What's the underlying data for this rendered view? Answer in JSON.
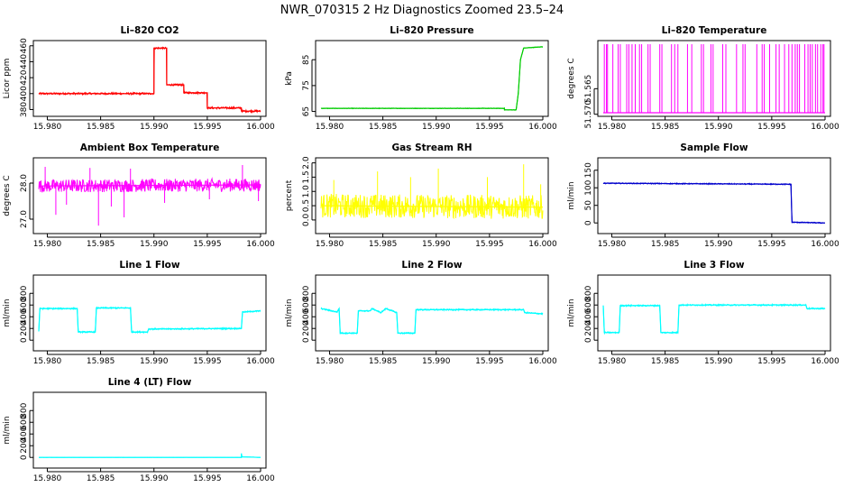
{
  "figure_title": "NWR_070315  2 Hz Diagnostics Zoomed 23.5–24",
  "chart_data": [
    {
      "type": "line",
      "title": "Li–820 CO2",
      "xlabel": "",
      "ylabel": "Licor ppm",
      "color": "#ff0000",
      "xlim": [
        15.9792,
        16.0
      ],
      "xticks": [
        15.98,
        15.985,
        15.99,
        15.995,
        16.0
      ],
      "xtick_labels": [
        "15.980",
        "15.985",
        "15.990",
        "15.995",
        "16.000"
      ],
      "ylim": [
        376,
        462
      ],
      "yticks": [
        380,
        400,
        420,
        440,
        460
      ],
      "ytick_labels": [
        "380",
        "400",
        "420",
        "440",
        "460"
      ],
      "noise": 1.2,
      "segments": [
        [
          15.9792,
          400
        ],
        [
          15.99,
          400
        ],
        [
          15.99,
          457
        ],
        [
          15.9912,
          457
        ],
        [
          15.9912,
          411
        ],
        [
          15.9928,
          411
        ],
        [
          15.9928,
          401
        ],
        [
          15.995,
          401
        ],
        [
          15.995,
          382
        ],
        [
          15.9982,
          382
        ],
        [
          15.9982,
          378
        ],
        [
          16.0,
          378
        ]
      ]
    },
    {
      "type": "line",
      "title": "Li–820 Pressure",
      "xlabel": "",
      "ylabel": "kPa",
      "color": "#00cc00",
      "xlim": [
        15.9792,
        16.0
      ],
      "xticks": [
        15.98,
        15.985,
        15.99,
        15.995,
        16.0
      ],
      "xtick_labels": [
        "15.980",
        "15.985",
        "15.990",
        "15.995",
        "16.000"
      ],
      "ylim": [
        64.5,
        91
      ],
      "yticks": [
        65,
        75,
        85
      ],
      "ytick_labels": [
        "65",
        "75",
        "85"
      ],
      "noise": 0.12,
      "segments": [
        [
          15.9792,
          66.2
        ],
        [
          15.9964,
          66.2
        ],
        [
          15.9964,
          65.6
        ],
        [
          15.9975,
          65.6
        ],
        [
          15.9977,
          72
        ],
        [
          15.9979,
          85
        ],
        [
          15.9982,
          89.5
        ],
        [
          16.0,
          90
        ]
      ]
    },
    {
      "type": "spikes",
      "title": "Li–820 Temperature",
      "xlabel": "",
      "ylabel": "degrees C",
      "color": "#ff00ff",
      "xlim": [
        15.9792,
        16.0
      ],
      "xticks": [
        15.98,
        15.985,
        15.99,
        15.995,
        16.0
      ],
      "xtick_labels": [
        "15.980",
        "15.985",
        "15.990",
        "15.995",
        "16.000"
      ],
      "ylim": [
        51.5697,
        51.5563
      ],
      "yticks": [
        51.57,
        51.565
      ],
      "ytick_labels": [
        "51.570",
        "51.565"
      ],
      "base_value": 51.5697,
      "top_value": 51.5563,
      "spike_x": [
        15.9793,
        15.9795,
        15.9796,
        15.9801,
        15.9806,
        15.9808,
        15.9814,
        15.9816,
        15.9819,
        15.9822,
        15.9826,
        15.9828,
        15.9834,
        15.9836,
        15.9845,
        15.9847,
        15.9856,
        15.9859,
        15.9862,
        15.9871,
        15.9875,
        15.9884,
        15.9886,
        15.9893,
        15.9895,
        15.9904,
        15.9907,
        15.9917,
        15.9923,
        15.9925,
        15.9936,
        15.9941,
        15.9943,
        15.9948,
        15.9954,
        15.9957,
        15.9962,
        15.9966,
        15.9969,
        15.9972,
        15.9974,
        15.9976,
        15.9981,
        15.9984,
        15.9986,
        15.9988,
        15.9991,
        15.9993,
        15.9996,
        15.9998,
        15.9999
      ]
    },
    {
      "type": "line",
      "title": "Ambient Box Temperature",
      "xlabel": "",
      "ylabel": "degrees C",
      "color": "#ff00ff",
      "xlim": [
        15.9792,
        16.0
      ],
      "xticks": [
        15.98,
        15.985,
        15.99,
        15.995,
        16.0
      ],
      "xtick_labels": [
        "15.980",
        "15.985",
        "15.990",
        "15.995",
        "16.000"
      ],
      "ylim": [
        26.7,
        28.6
      ],
      "yticks": [
        27.0,
        28.0
      ],
      "ytick_labels": [
        "27.0",
        "28.0"
      ],
      "noise": 0.18,
      "segments": [
        [
          15.9792,
          27.92
        ],
        [
          16.0,
          27.95
        ]
      ],
      "outliers": [
        [
          15.9798,
          28.45
        ],
        [
          15.9808,
          27.12
        ],
        [
          15.9818,
          27.4
        ],
        [
          15.984,
          28.42
        ],
        [
          15.9848,
          26.82
        ],
        [
          15.986,
          27.35
        ],
        [
          15.9872,
          27.05
        ],
        [
          15.9878,
          28.4
        ],
        [
          15.991,
          27.45
        ],
        [
          15.9952,
          27.55
        ],
        [
          15.9983,
          28.5
        ],
        [
          15.9998,
          27.5
        ]
      ]
    },
    {
      "type": "line",
      "title": "Gas Stream RH",
      "xlabel": "",
      "ylabel": "percent",
      "color": "#ffff00",
      "xlim": [
        15.9792,
        16.0
      ],
      "xticks": [
        15.98,
        15.985,
        15.99,
        15.995,
        16.0
      ],
      "xtick_labels": [
        "15.980",
        "15.985",
        "15.990",
        "15.995",
        "16.000"
      ],
      "ylim": [
        -0.35,
        2.05
      ],
      "yticks": [
        0.0,
        0.5,
        1.0,
        1.5,
        2.0
      ],
      "ytick_labels": [
        "0.0",
        "0.5",
        "1.0",
        "1.5",
        "2.0"
      ],
      "noise": 0.42,
      "segments": [
        [
          15.9792,
          0.5
        ],
        [
          16.0,
          0.45
        ]
      ],
      "outliers": [
        [
          15.9804,
          1.4
        ],
        [
          15.9845,
          1.7
        ],
        [
          15.9876,
          1.5
        ],
        [
          15.9902,
          1.8
        ],
        [
          15.9948,
          1.5
        ],
        [
          15.9982,
          1.95
        ],
        [
          15.9998,
          1.25
        ]
      ]
    },
    {
      "type": "line",
      "title": "Sample Flow",
      "xlabel": "",
      "ylabel": "ml/min",
      "color": "#0000cc",
      "xlim": [
        15.9792,
        16.0
      ],
      "xticks": [
        15.98,
        15.985,
        15.99,
        15.995,
        16.0
      ],
      "xtick_labels": [
        "15.980",
        "15.985",
        "15.990",
        "15.995",
        "16.000"
      ],
      "ylim": [
        -20,
        175
      ],
      "yticks": [
        0,
        50,
        100,
        150
      ],
      "ytick_labels": [
        "0",
        "50",
        "100",
        "150"
      ],
      "noise": 1.5,
      "segments": [
        [
          15.9792,
          113
        ],
        [
          15.9968,
          110
        ],
        [
          15.9968,
          108
        ],
        [
          15.9969,
          2
        ],
        [
          16.0,
          0
        ]
      ]
    },
    {
      "type": "line",
      "title": "Line 1 Flow",
      "xlabel": "",
      "ylabel": "ml/min",
      "color": "#00ffff",
      "xlim": [
        15.9792,
        16.0
      ],
      "xticks": [
        15.98,
        15.985,
        15.99,
        15.995,
        16.0
      ],
      "xtick_labels": [
        "15.980",
        "15.985",
        "15.990",
        "15.995",
        "16.000"
      ],
      "ylim": [
        -120,
        1050
      ],
      "yticks": [
        0,
        200,
        400,
        600,
        800
      ],
      "ytick_labels": [
        "0",
        "200",
        "400",
        "600",
        "800"
      ],
      "noise": 12,
      "segments": [
        [
          15.9792,
          150
        ],
        [
          15.9793,
          540
        ],
        [
          15.9828,
          540
        ],
        [
          15.9829,
          140
        ],
        [
          15.9845,
          140
        ],
        [
          15.9846,
          550
        ],
        [
          15.9878,
          550
        ],
        [
          15.9879,
          140
        ],
        [
          15.9894,
          140
        ],
        [
          15.9895,
          190
        ],
        [
          15.9982,
          200
        ],
        [
          15.9983,
          480
        ],
        [
          16.0,
          500
        ]
      ]
    },
    {
      "type": "line",
      "title": "Line 2 Flow",
      "xlabel": "",
      "ylabel": "ml/min",
      "color": "#00ffff",
      "xlim": [
        15.9792,
        16.0
      ],
      "xticks": [
        15.98,
        15.985,
        15.99,
        15.995,
        16.0
      ],
      "xtick_labels": [
        "15.980",
        "15.985",
        "15.990",
        "15.995",
        "16.000"
      ],
      "ylim": [
        -120,
        1050
      ],
      "yticks": [
        0,
        200,
        400,
        600,
        800
      ],
      "ytick_labels": [
        "0",
        "200",
        "400",
        "600",
        "800"
      ],
      "noise": 12,
      "segments": [
        [
          15.9792,
          540
        ],
        [
          15.9807,
          480
        ],
        [
          15.9809,
          540
        ],
        [
          15.981,
          120
        ],
        [
          15.9826,
          120
        ],
        [
          15.9827,
          500
        ],
        [
          15.9838,
          500
        ],
        [
          15.984,
          540
        ],
        [
          15.9848,
          470
        ],
        [
          15.9853,
          540
        ],
        [
          15.9863,
          470
        ],
        [
          15.9864,
          120
        ],
        [
          15.988,
          120
        ],
        [
          15.9881,
          520
        ],
        [
          15.9982,
          520
        ],
        [
          15.9983,
          470
        ],
        [
          16.0,
          450
        ]
      ]
    },
    {
      "type": "line",
      "title": "Line 3 Flow",
      "xlabel": "",
      "ylabel": "ml/min",
      "color": "#00ffff",
      "xlim": [
        15.9792,
        16.0
      ],
      "xticks": [
        15.98,
        15.985,
        15.99,
        15.995,
        16.0
      ],
      "xtick_labels": [
        "15.980",
        "15.985",
        "15.990",
        "15.995",
        "16.000"
      ],
      "ylim": [
        -120,
        1050
      ],
      "yticks": [
        0,
        200,
        400,
        600,
        800
      ],
      "ytick_labels": [
        "0",
        "200",
        "400",
        "600",
        "800"
      ],
      "noise": 12,
      "segments": [
        [
          15.9792,
          590
        ],
        [
          15.9793,
          130
        ],
        [
          15.9807,
          130
        ],
        [
          15.9808,
          590
        ],
        [
          15.9845,
          590
        ],
        [
          15.9846,
          130
        ],
        [
          15.9862,
          130
        ],
        [
          15.9863,
          600
        ],
        [
          15.9982,
          600
        ],
        [
          15.9983,
          540
        ],
        [
          16.0,
          540
        ]
      ]
    },
    {
      "type": "line",
      "title": "Line 4 (LT) Flow",
      "xlabel": "",
      "ylabel": "ml/min",
      "color": "#00ffff",
      "xlim": [
        15.9792,
        16.0
      ],
      "xticks": [
        15.98,
        15.985,
        15.99,
        15.995,
        16.0
      ],
      "xtick_labels": [
        "15.980",
        "15.985",
        "15.990",
        "15.995",
        "16.000"
      ],
      "ylim": [
        -120,
        1050
      ],
      "yticks": [
        0,
        200,
        400,
        600,
        800
      ],
      "ytick_labels": [
        "0",
        "200",
        "400",
        "600",
        "800"
      ],
      "noise": 2,
      "segments": [
        [
          15.9792,
          0
        ],
        [
          15.9982,
          0
        ],
        [
          15.9982,
          70
        ],
        [
          15.99825,
          10
        ],
        [
          16.0,
          0
        ]
      ]
    }
  ]
}
